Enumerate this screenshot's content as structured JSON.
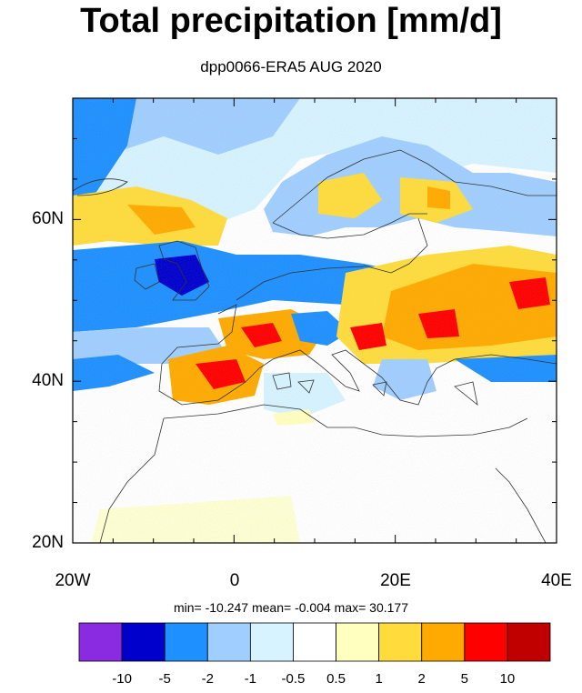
{
  "title": "Total precipitation [mm/d]",
  "subtitle": "dpp0066-ERA5 AUG 2020",
  "stats": {
    "text": "min= -10.247   mean=  -0.004   max=  30.177"
  },
  "axes": {
    "x_ticks": [
      "20W",
      "0",
      "20E",
      "40E"
    ],
    "y_ticks": [
      "60N",
      "40N",
      "20N"
    ]
  },
  "colorbar": {
    "colors": [
      "#8a2be2",
      "#0000cd",
      "#1e90ff",
      "#a0ceff",
      "#d6f3ff",
      "#ffffff",
      "#ffffc0",
      "#ffdc3c",
      "#ffaa00",
      "#ff0000",
      "#c00000"
    ],
    "labels": [
      "-10",
      "-5",
      "-2",
      "-1",
      "-0.5",
      "0.5",
      "1",
      "2",
      "5",
      "10"
    ]
  },
  "map": {
    "lon_range": [
      -20,
      40
    ],
    "lat_range": [
      20,
      75
    ]
  }
}
